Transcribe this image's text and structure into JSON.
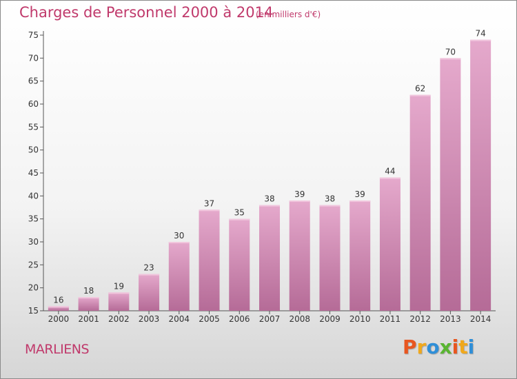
{
  "title": "Charges de Personnel 2000 à 2014",
  "subtitle": "(en milliers d'€)",
  "commune": "MARLIENS",
  "brand": {
    "letters": [
      "P",
      "r",
      "o",
      "x",
      "i",
      "t",
      "i"
    ],
    "colors": [
      "#e8561f",
      "#f0a81c",
      "#2f8fd8",
      "#59b531",
      "#e8561f",
      "#f0a81c",
      "#2f8fd8"
    ]
  },
  "colors": {
    "accent": "#c0396b",
    "bar_top": "#e5a9cc",
    "bar_bottom": "#b56b97"
  },
  "chart_data": {
    "type": "bar",
    "categories": [
      "2000",
      "2001",
      "2002",
      "2003",
      "2004",
      "2005",
      "2006",
      "2007",
      "2008",
      "2009",
      "2010",
      "2011",
      "2012",
      "2013",
      "2014"
    ],
    "values": [
      16,
      18,
      19,
      23,
      30,
      37,
      35,
      38,
      39,
      38,
      39,
      44,
      62,
      70,
      74
    ],
    "ylim": [
      15,
      75
    ],
    "yticks": [
      15,
      20,
      25,
      30,
      35,
      40,
      45,
      50,
      55,
      60,
      65,
      70,
      75
    ],
    "xlabel": "",
    "ylabel": "",
    "grid": false,
    "data_labels": true
  }
}
